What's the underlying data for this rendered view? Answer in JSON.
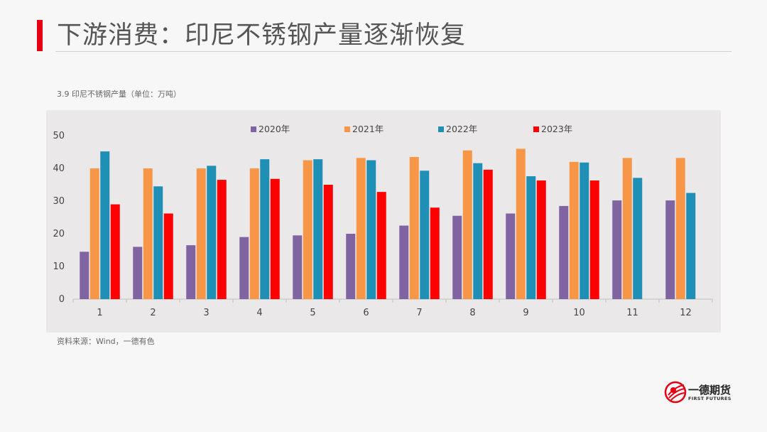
{
  "header": {
    "title": "下游消费：印尼不锈钢产量逐渐恢复"
  },
  "chart_caption": "3.9 印尼不锈钢产量（单位：万吨）",
  "source_note": "资料来源：Wind，一德有色",
  "logo": {
    "name_cn": "一德期货",
    "name_en": "FIRST FUTURES"
  },
  "colors": {
    "accent": "#e60012",
    "series": [
      "#8064a2",
      "#f79646",
      "#1f8fb5",
      "#ff0000"
    ]
  },
  "chart_data": {
    "type": "bar",
    "categories": [
      "1",
      "2",
      "3",
      "4",
      "5",
      "6",
      "7",
      "8",
      "9",
      "10",
      "11",
      "12"
    ],
    "ylim": [
      0,
      50
    ],
    "yticks": [
      "0",
      "10",
      "20",
      "30",
      "40",
      "50"
    ],
    "legend_position": "top",
    "grid": false,
    "series": [
      {
        "name": "2020年",
        "values": [
          14.5,
          16,
          16.5,
          19,
          19.5,
          20,
          22.5,
          25.5,
          26.2,
          28.5,
          30.2,
          30.2
        ]
      },
      {
        "name": "2021年",
        "values": [
          40,
          40,
          40,
          40,
          42.5,
          43.2,
          43.5,
          45.5,
          46,
          42,
          43.2,
          43.2
        ]
      },
      {
        "name": "2022年",
        "values": [
          45.2,
          34.5,
          40.8,
          42.8,
          42.8,
          42.5,
          39.3,
          41.6,
          37.6,
          41.8,
          37.1,
          32.5
        ]
      },
      {
        "name": "2023年",
        "values": [
          29,
          26.2,
          36.5,
          36.8,
          35,
          32.8,
          28,
          39.6,
          36.3,
          36.3,
          null,
          null
        ]
      }
    ]
  }
}
